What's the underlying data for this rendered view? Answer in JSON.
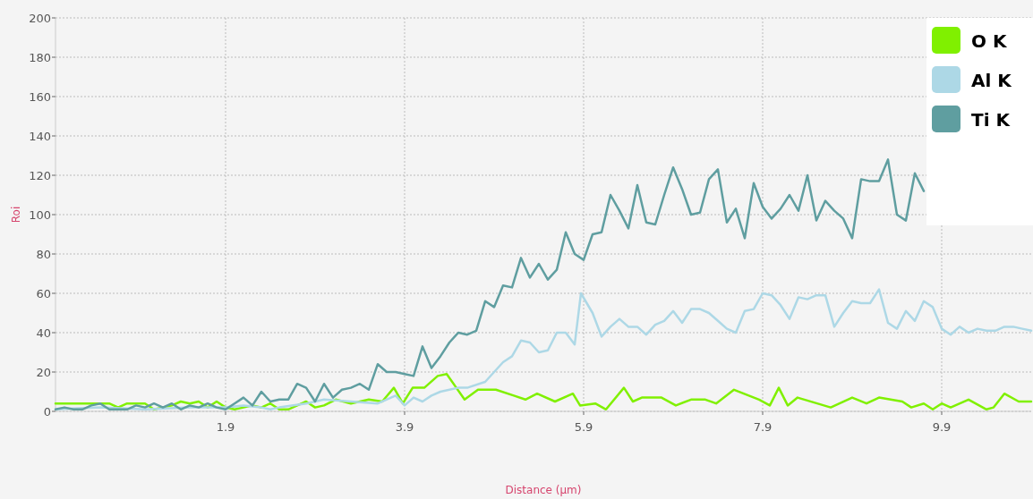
{
  "chart_data": {
    "type": "line",
    "xlabel": "Distance (µm)",
    "ylabel": "Roi",
    "xlim": [
      0,
      10.9
    ],
    "ylim": [
      0,
      200
    ],
    "xticks": [
      1.9,
      3.9,
      5.9,
      7.9,
      9.9
    ],
    "yticks": [
      0,
      20,
      40,
      60,
      80,
      100,
      120,
      140,
      160,
      180,
      200
    ],
    "grid": true,
    "legend": "top right",
    "line_style": "solid",
    "marker": "none",
    "series": [
      {
        "name": "O K",
        "color": "#80f000",
        "x": [
          0,
          0.2,
          0.4,
          0.6,
          0.7,
          0.8,
          0.9,
          1.0,
          1.1,
          1.2,
          1.3,
          1.4,
          1.5,
          1.6,
          1.7,
          1.8,
          1.9,
          2.0,
          2.1,
          2.2,
          2.3,
          2.4,
          2.5,
          2.6,
          2.7,
          2.8,
          2.9,
          3.0,
          3.13,
          3.3,
          3.5,
          3.65,
          3.78,
          3.88,
          3.99,
          4.12,
          4.27,
          4.37,
          4.57,
          4.72,
          4.92,
          5.12,
          5.25,
          5.38,
          5.58,
          5.78,
          5.86,
          6.03,
          6.15,
          6.35,
          6.45,
          6.55,
          6.77,
          6.93,
          7.1,
          7.26,
          7.38,
          7.58,
          7.86,
          7.98,
          8.08,
          8.18,
          8.29,
          8.66,
          8.9,
          9.06,
          9.2,
          9.46,
          9.56,
          9.7,
          9.8,
          9.9,
          10.0,
          10.2,
          10.4,
          10.48,
          10.6,
          10.76,
          10.9
        ],
        "values": [
          4,
          4,
          4,
          4,
          2,
          4,
          4,
          4,
          1,
          2,
          3,
          5,
          4,
          5,
          2,
          5,
          2,
          1,
          2,
          3,
          2,
          4,
          1,
          1,
          3,
          5,
          2,
          3,
          6,
          4,
          6,
          5,
          12,
          4,
          12,
          12,
          18,
          19,
          6,
          11,
          11,
          8,
          6,
          9,
          5,
          9,
          3,
          4,
          1,
          12,
          5,
          7,
          7,
          3,
          6,
          6,
          4,
          11,
          6,
          3,
          12,
          3,
          7,
          2,
          7,
          4,
          7,
          5,
          2,
          4,
          1,
          4,
          2,
          6,
          1,
          2,
          9,
          5,
          5
        ]
      },
      {
        "name": "Al K",
        "color": "#add8e6",
        "x": [
          0,
          0.5,
          1.0,
          1.5,
          1.9,
          2.1,
          2.3,
          2.4,
          2.5,
          2.8,
          3.0,
          3.3,
          3.6,
          3.8,
          3.9,
          4.0,
          4.1,
          4.2,
          4.3,
          4.5,
          4.6,
          4.8,
          4.9,
          5.0,
          5.1,
          5.2,
          5.3,
          5.4,
          5.5,
          5.6,
          5.7,
          5.8,
          5.87,
          6.0,
          6.1,
          6.2,
          6.3,
          6.4,
          6.5,
          6.6,
          6.7,
          6.8,
          6.9,
          7.0,
          7.1,
          7.2,
          7.3,
          7.4,
          7.5,
          7.6,
          7.7,
          7.8,
          7.9,
          8.0,
          8.1,
          8.2,
          8.3,
          8.4,
          8.5,
          8.6,
          8.7,
          8.8,
          8.9,
          9.0,
          9.1,
          9.2,
          9.3,
          9.4,
          9.5,
          9.6,
          9.7,
          9.8,
          9.9,
          10.0,
          10.1,
          10.2,
          10.3,
          10.4,
          10.5,
          10.6,
          10.7,
          10.8,
          10.9
        ],
        "values": [
          1,
          2,
          1,
          2,
          2,
          3,
          2,
          1,
          2,
          4,
          6,
          5,
          4,
          8,
          3,
          7,
          5,
          8,
          10,
          12,
          12,
          15,
          20,
          25,
          28,
          36,
          35,
          30,
          31,
          40,
          40,
          34,
          60,
          50,
          38,
          43,
          47,
          43,
          43,
          39,
          44,
          46,
          51,
          45,
          52,
          52,
          50,
          46,
          42,
          40,
          51,
          52,
          60,
          59,
          54,
          47,
          58,
          57,
          59,
          59,
          43,
          50,
          56,
          55,
          55,
          62,
          45,
          42,
          51,
          46,
          56,
          53,
          42,
          39,
          43,
          40,
          42,
          41,
          41,
          43,
          43,
          42,
          41
        ]
      },
      {
        "name": "Ti K",
        "color": "#5f9ea0",
        "x": [
          0,
          0.1,
          0.2,
          0.3,
          0.4,
          0.5,
          0.6,
          0.7,
          0.8,
          0.9,
          1.0,
          1.1,
          1.2,
          1.3,
          1.4,
          1.5,
          1.6,
          1.7,
          1.8,
          1.9,
          2.0,
          2.1,
          2.2,
          2.3,
          2.4,
          2.5,
          2.6,
          2.7,
          2.8,
          2.9,
          3.0,
          3.1,
          3.2,
          3.3,
          3.4,
          3.5,
          3.6,
          3.7,
          3.8,
          3.9,
          4.0,
          4.1,
          4.2,
          4.3,
          4.4,
          4.5,
          4.6,
          4.7,
          4.8,
          4.9,
          5.0,
          5.1,
          5.2,
          5.3,
          5.4,
          5.5,
          5.6,
          5.7,
          5.8,
          5.9,
          6.0,
          6.1,
          6.2,
          6.3,
          6.4,
          6.5,
          6.6,
          6.7,
          6.8,
          6.9,
          7.0,
          7.1,
          7.2,
          7.3,
          7.4,
          7.5,
          7.6,
          7.7,
          7.8,
          7.9,
          8.0,
          8.1,
          8.2,
          8.3,
          8.4,
          8.5,
          8.6,
          8.7,
          8.8,
          8.9,
          9.0,
          9.1,
          9.2,
          9.3,
          9.4,
          9.5,
          9.6,
          9.7
        ],
        "values": [
          1,
          2,
          1,
          1,
          3,
          4,
          1,
          1,
          1,
          3,
          2,
          4,
          2,
          4,
          1,
          3,
          2,
          4,
          2,
          1,
          4,
          7,
          3,
          10,
          5,
          6,
          6,
          14,
          12,
          5,
          14,
          7,
          11,
          12,
          14,
          11,
          24,
          20,
          20,
          19,
          18,
          33,
          22,
          28,
          35,
          40,
          39,
          41,
          56,
          53,
          64,
          63,
          78,
          68,
          75,
          67,
          72,
          91,
          80,
          77,
          90,
          91,
          110,
          102,
          93,
          115,
          96,
          95,
          110,
          124,
          113,
          100,
          101,
          118,
          123,
          96,
          103,
          88,
          116,
          104,
          98,
          103,
          110,
          102,
          120,
          97,
          107,
          102,
          98,
          88,
          118,
          117,
          117,
          128,
          100,
          97,
          121,
          112
        ]
      }
    ]
  }
}
